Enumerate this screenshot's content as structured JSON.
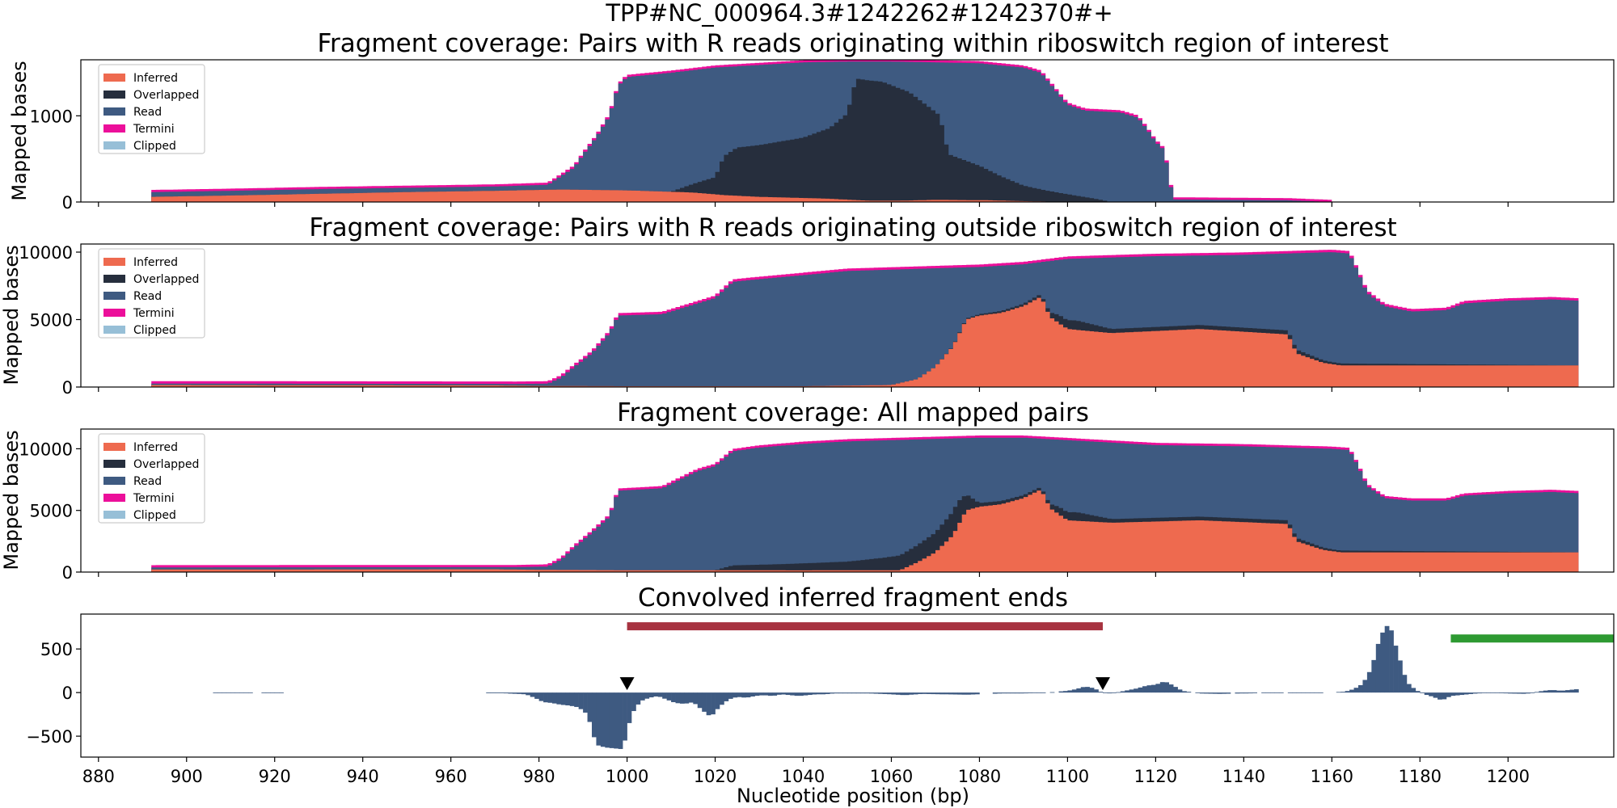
{
  "figure": {
    "suptitle": "TPP#NC_000964.3#1242262#1242370#+",
    "xlabel": "Nucleotide position (bp)",
    "xlim": [
      876,
      1224
    ],
    "xticks": [
      880,
      900,
      920,
      940,
      960,
      980,
      1000,
      1020,
      1040,
      1060,
      1080,
      1100,
      1120,
      1140,
      1160,
      1180,
      1200
    ],
    "legend_labels": [
      "Inferred",
      "Overlapped",
      "Read",
      "Termini",
      "Clipped"
    ],
    "colors": {
      "inferred": "#ee6a4f",
      "overlapped": "#262e3d",
      "read": "#3e5a81",
      "termini": "#ec0f9a",
      "clipped": "#97bfd7",
      "red_bar": "#a73340",
      "green_bar": "#2e9a32"
    }
  },
  "chart_data": [
    {
      "type": "area",
      "title": "Fragment coverage: Pairs with R reads originating within riboswitch region of interest",
      "ylabel": "Mapped bases",
      "ylim": [
        0,
        1650
      ],
      "yticks": [
        0,
        1000
      ],
      "legend": "top-left",
      "stacked": true,
      "inferred": [
        [
          892,
          60
        ],
        [
          910,
          75
        ],
        [
          930,
          95
        ],
        [
          950,
          115
        ],
        [
          970,
          130
        ],
        [
          985,
          145
        ],
        [
          1000,
          135
        ],
        [
          1015,
          110
        ],
        [
          1022,
          80
        ],
        [
          1030,
          60
        ],
        [
          1045,
          40
        ],
        [
          1055,
          15
        ],
        [
          1062,
          15
        ],
        [
          1070,
          25
        ],
        [
          1082,
          20
        ],
        [
          1090,
          10
        ],
        [
          1100,
          0
        ],
        [
          1216,
          0
        ]
      ],
      "overlapped": [
        [
          892,
          0
        ],
        [
          1010,
          0
        ],
        [
          1015,
          100
        ],
        [
          1020,
          200
        ],
        [
          1022,
          450
        ],
        [
          1025,
          560
        ],
        [
          1030,
          600
        ],
        [
          1040,
          700
        ],
        [
          1046,
          820
        ],
        [
          1050,
          1000
        ],
        [
          1052,
          1410
        ],
        [
          1058,
          1380
        ],
        [
          1064,
          1260
        ],
        [
          1068,
          1100
        ],
        [
          1071,
          980
        ],
        [
          1073,
          530
        ],
        [
          1080,
          400
        ],
        [
          1085,
          280
        ],
        [
          1090,
          180
        ],
        [
          1095,
          130
        ],
        [
          1100,
          90
        ],
        [
          1106,
          40
        ],
        [
          1110,
          0
        ],
        [
          1216,
          0
        ]
      ],
      "read_top": [
        [
          892,
          115
        ],
        [
          910,
          130
        ],
        [
          930,
          150
        ],
        [
          950,
          165
        ],
        [
          970,
          180
        ],
        [
          982,
          200
        ],
        [
          985,
          300
        ],
        [
          988,
          400
        ],
        [
          990,
          550
        ],
        [
          993,
          750
        ],
        [
          996,
          1000
        ],
        [
          998,
          1350
        ],
        [
          1000,
          1450
        ],
        [
          1010,
          1500
        ],
        [
          1020,
          1560
        ],
        [
          1030,
          1590
        ],
        [
          1040,
          1620
        ],
        [
          1050,
          1630
        ],
        [
          1060,
          1630
        ],
        [
          1070,
          1620
        ],
        [
          1080,
          1610
        ],
        [
          1090,
          1560
        ],
        [
          1094,
          1500
        ],
        [
          1100,
          1130
        ],
        [
          1104,
          1060
        ],
        [
          1112,
          1040
        ],
        [
          1116,
          980
        ],
        [
          1118,
          850
        ],
        [
          1120,
          700
        ],
        [
          1122,
          600
        ],
        [
          1124,
          30
        ],
        [
          1150,
          20
        ],
        [
          1160,
          0
        ],
        [
          1216,
          0
        ]
      ],
      "termini_band": 25
    },
    {
      "type": "area",
      "title": "Fragment coverage: Pairs with R reads originating outside riboswitch region of interest",
      "ylabel": "Mapped bases",
      "ylim": [
        0,
        10600
      ],
      "yticks": [
        0,
        5000,
        10000
      ],
      "legend": "top-left",
      "stacked": true,
      "inferred": [
        [
          892,
          150
        ],
        [
          970,
          120
        ],
        [
          980,
          80
        ],
        [
          1000,
          60
        ],
        [
          1040,
          60
        ],
        [
          1060,
          150
        ],
        [
          1066,
          600
        ],
        [
          1070,
          1500
        ],
        [
          1074,
          3000
        ],
        [
          1077,
          5000
        ],
        [
          1080,
          5300
        ],
        [
          1085,
          5500
        ],
        [
          1090,
          6000
        ],
        [
          1094,
          6700
        ],
        [
          1096,
          5200
        ],
        [
          1100,
          4300
        ],
        [
          1110,
          4000
        ],
        [
          1130,
          4300
        ],
        [
          1150,
          3900
        ],
        [
          1152,
          2500
        ],
        [
          1158,
          1800
        ],
        [
          1162,
          1600
        ],
        [
          1216,
          1600
        ]
      ],
      "overlapped": [
        [
          892,
          0
        ],
        [
          1070,
          0
        ],
        [
          1080,
          100
        ],
        [
          1095,
          200
        ],
        [
          1098,
          600
        ],
        [
          1102,
          700
        ],
        [
          1110,
          300
        ],
        [
          1150,
          300
        ],
        [
          1160,
          150
        ],
        [
          1216,
          0
        ]
      ],
      "read_top": [
        [
          892,
          260
        ],
        [
          975,
          230
        ],
        [
          982,
          250
        ],
        [
          985,
          700
        ],
        [
          988,
          1500
        ],
        [
          992,
          2500
        ],
        [
          996,
          4000
        ],
        [
          998,
          5300
        ],
        [
          1008,
          5400
        ],
        [
          1012,
          5800
        ],
        [
          1016,
          6200
        ],
        [
          1020,
          6600
        ],
        [
          1024,
          7800
        ],
        [
          1030,
          8000
        ],
        [
          1040,
          8300
        ],
        [
          1050,
          8600
        ],
        [
          1060,
          8700
        ],
        [
          1070,
          8800
        ],
        [
          1080,
          8900
        ],
        [
          1090,
          9100
        ],
        [
          1100,
          9500
        ],
        [
          1120,
          9700
        ],
        [
          1140,
          9800
        ],
        [
          1160,
          10000
        ],
        [
          1164,
          9900
        ],
        [
          1166,
          8500
        ],
        [
          1168,
          7000
        ],
        [
          1172,
          6000
        ],
        [
          1178,
          5600
        ],
        [
          1186,
          5700
        ],
        [
          1190,
          6200
        ],
        [
          1200,
          6400
        ],
        [
          1210,
          6500
        ],
        [
          1216,
          6400
        ]
      ],
      "termini_band": 180
    },
    {
      "type": "area",
      "title": "Fragment coverage: All mapped pairs",
      "ylabel": "Mapped bases",
      "ylim": [
        0,
        11600
      ],
      "yticks": [
        0,
        5000,
        10000
      ],
      "legend": "top-left",
      "stacked": true,
      "inferred": [
        [
          892,
          210
        ],
        [
          970,
          230
        ],
        [
          980,
          180
        ],
        [
          1000,
          150
        ],
        [
          1040,
          140
        ],
        [
          1062,
          150
        ],
        [
          1066,
          800
        ],
        [
          1070,
          1600
        ],
        [
          1074,
          3000
        ],
        [
          1077,
          5000
        ],
        [
          1080,
          5300
        ],
        [
          1085,
          5500
        ],
        [
          1090,
          6000
        ],
        [
          1094,
          6700
        ],
        [
          1096,
          5200
        ],
        [
          1100,
          4200
        ],
        [
          1110,
          4000
        ],
        [
          1130,
          4200
        ],
        [
          1150,
          3900
        ],
        [
          1152,
          2500
        ],
        [
          1158,
          1800
        ],
        [
          1162,
          1600
        ],
        [
          1216,
          1600
        ]
      ],
      "overlapped": [
        [
          892,
          0
        ],
        [
          1020,
          0
        ],
        [
          1024,
          400
        ],
        [
          1035,
          500
        ],
        [
          1050,
          700
        ],
        [
          1058,
          1000
        ],
        [
          1064,
          1300
        ],
        [
          1070,
          1600
        ],
        [
          1075,
          2000
        ],
        [
          1080,
          300
        ],
        [
          1095,
          200
        ],
        [
          1098,
          600
        ],
        [
          1102,
          700
        ],
        [
          1110,
          300
        ],
        [
          1150,
          300
        ],
        [
          1160,
          150
        ],
        [
          1216,
          0
        ]
      ],
      "read_top": [
        [
          892,
          380
        ],
        [
          975,
          400
        ],
        [
          982,
          450
        ],
        [
          985,
          1000
        ],
        [
          988,
          2000
        ],
        [
          992,
          3200
        ],
        [
          996,
          4500
        ],
        [
          998,
          6600
        ],
        [
          1008,
          6800
        ],
        [
          1012,
          7500
        ],
        [
          1016,
          8200
        ],
        [
          1020,
          8600
        ],
        [
          1024,
          9800
        ],
        [
          1030,
          10100
        ],
        [
          1040,
          10400
        ],
        [
          1050,
          10600
        ],
        [
          1060,
          10700
        ],
        [
          1070,
          10800
        ],
        [
          1080,
          10900
        ],
        [
          1090,
          10900
        ],
        [
          1100,
          10700
        ],
        [
          1120,
          10300
        ],
        [
          1140,
          10200
        ],
        [
          1160,
          10000
        ],
        [
          1164,
          9900
        ],
        [
          1166,
          8600
        ],
        [
          1168,
          7000
        ],
        [
          1172,
          6000
        ],
        [
          1178,
          5800
        ],
        [
          1186,
          5800
        ],
        [
          1190,
          6200
        ],
        [
          1200,
          6400
        ],
        [
          1210,
          6500
        ],
        [
          1216,
          6400
        ]
      ],
      "termini_band": 180
    },
    {
      "type": "bar",
      "title": "Convolved inferred fragment ends",
      "ylabel": "",
      "ylim": [
        -740,
        900
      ],
      "yticks": [
        -500,
        0,
        500
      ],
      "values": [
        [
          908,
          -5
        ],
        [
          910,
          -5
        ],
        [
          912,
          -5
        ],
        [
          919,
          -5
        ],
        [
          970,
          -8
        ],
        [
          972,
          -8
        ],
        [
          977,
          -20
        ],
        [
          979,
          -60
        ],
        [
          981,
          -110
        ],
        [
          983,
          -120
        ],
        [
          985,
          -140
        ],
        [
          987,
          -150
        ],
        [
          989,
          -170
        ],
        [
          991,
          -250
        ],
        [
          993,
          -600
        ],
        [
          995,
          -630
        ],
        [
          997,
          -640
        ],
        [
          999,
          -650
        ],
        [
          1001,
          -250
        ],
        [
          1003,
          -100
        ],
        [
          1005,
          -60
        ],
        [
          1007,
          -40
        ],
        [
          1009,
          -80
        ],
        [
          1011,
          -120
        ],
        [
          1013,
          -130
        ],
        [
          1015,
          -110
        ],
        [
          1017,
          -200
        ],
        [
          1019,
          -280
        ],
        [
          1021,
          -160
        ],
        [
          1023,
          -80
        ],
        [
          1025,
          -50
        ],
        [
          1027,
          -60
        ],
        [
          1029,
          -40
        ],
        [
          1031,
          -30
        ],
        [
          1033,
          -40
        ],
        [
          1035,
          -20
        ],
        [
          1037,
          -30
        ],
        [
          1039,
          -40
        ],
        [
          1041,
          -30
        ],
        [
          1043,
          -20
        ],
        [
          1045,
          -20
        ],
        [
          1047,
          -10
        ],
        [
          1050,
          -10
        ],
        [
          1055,
          -10
        ],
        [
          1060,
          -20
        ],
        [
          1063,
          -30
        ],
        [
          1067,
          -15
        ],
        [
          1071,
          -20
        ],
        [
          1073,
          -20
        ],
        [
          1077,
          -25
        ],
        [
          1085,
          -10
        ],
        [
          1090,
          -10
        ],
        [
          1094,
          -5
        ],
        [
          1100,
          20
        ],
        [
          1102,
          40
        ],
        [
          1104,
          70
        ],
        [
          1106,
          50
        ],
        [
          1108,
          -5
        ],
        [
          1110,
          -10
        ],
        [
          1112,
          10
        ],
        [
          1114,
          30
        ],
        [
          1116,
          50
        ],
        [
          1118,
          80
        ],
        [
          1120,
          90
        ],
        [
          1122,
          130
        ],
        [
          1124,
          80
        ],
        [
          1126,
          20
        ],
        [
          1130,
          -10
        ],
        [
          1134,
          -15
        ],
        [
          1140,
          -10
        ],
        [
          1146,
          -5
        ],
        [
          1152,
          -5
        ],
        [
          1156,
          -5
        ],
        [
          1163,
          10
        ],
        [
          1165,
          40
        ],
        [
          1167,
          100
        ],
        [
          1169,
          280
        ],
        [
          1171,
          650
        ],
        [
          1173,
          800
        ],
        [
          1175,
          450
        ],
        [
          1177,
          120
        ],
        [
          1179,
          30
        ],
        [
          1181,
          -20
        ],
        [
          1183,
          -50
        ],
        [
          1185,
          -90
        ],
        [
          1187,
          -40
        ],
        [
          1189,
          -30
        ],
        [
          1191,
          -20
        ],
        [
          1193,
          -10
        ],
        [
          1195,
          -5
        ],
        [
          1200,
          -10
        ],
        [
          1204,
          -15
        ],
        [
          1208,
          20
        ],
        [
          1210,
          30
        ],
        [
          1212,
          20
        ],
        [
          1214,
          30
        ],
        [
          1216,
          40
        ]
      ],
      "red_bar": [
        1000,
        1108,
        760
      ],
      "green_bar": [
        1187,
        1224,
        620
      ],
      "markers_x": [
        1000,
        1108
      ]
    }
  ]
}
